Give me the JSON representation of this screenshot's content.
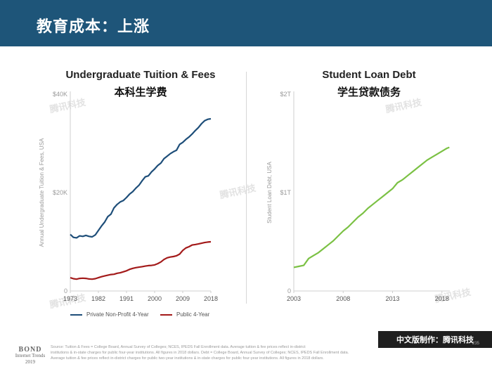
{
  "header": {
    "title": "教育成本：上涨"
  },
  "left_chart": {
    "title_en": "Undergraduate Tuition & Fees",
    "title_zh": "本科生学费"
  },
  "right_chart": {
    "title_en": "Student Loan Debt",
    "title_zh": "学生贷款债务"
  },
  "legend": {
    "private": "Private Non-Profit 4-Year",
    "public": "Public 4-Year"
  },
  "colors": {
    "header": "#1e5579",
    "private": "#1e4e79",
    "public": "#a31a1a",
    "loan": "#7bc144"
  },
  "watermark": "腾讯科技",
  "footer": {
    "bond_line1": "BOND",
    "bond_line2": "Internet Trends",
    "bond_line3": "2019",
    "source_line1": "Source: Tuition & Fees = College Board, Annual Survey of Colleges; NCES, IPEDS Fall Enrollment data. Average tuition & fee prices reflect in-district",
    "source_line2": "institutions & in-state charges for public four-year institutions. All figures in 2018 dollars.  Debt = College Board, Annual Survey of Colleges; NCES, IPEDS Fall Enrollment data.",
    "source_line3": "Average tuition & fee prices reflect in-district charges for public two-year institutions & in-state charges for public four-year institutions. All figures in 2018 dollars.",
    "page": "235",
    "brand": "中文版制作：腾讯科技"
  },
  "chart_data": [
    {
      "type": "line",
      "title": "Undergraduate Tuition & Fees",
      "subtitle": "本科生学费",
      "xlabel": "",
      "ylabel": "Annual Undergraduate Tuition & Fees, USA",
      "xlim": [
        1973,
        2018
      ],
      "ylim": [
        0,
        40000
      ],
      "x_ticks": [
        "1973",
        "1982",
        "1991",
        "2000",
        "2009",
        "2018"
      ],
      "y_ticks": [
        "0",
        "$20K",
        "$40K"
      ],
      "grid": false,
      "legend_position": "bottom",
      "x": [
        1973,
        1974,
        1975,
        1976,
        1977,
        1978,
        1979,
        1980,
        1981,
        1982,
        1983,
        1984,
        1985,
        1986,
        1987,
        1988,
        1989,
        1990,
        1991,
        1992,
        1993,
        1994,
        1995,
        1996,
        1997,
        1998,
        1999,
        2000,
        2001,
        2002,
        2003,
        2004,
        2005,
        2006,
        2007,
        2008,
        2009,
        2010,
        2011,
        2012,
        2013,
        2014,
        2015,
        2016,
        2017,
        2018
      ],
      "series": [
        {
          "name": "Private Non-Profit 4-Year",
          "color": "#1e4e79",
          "values": [
            11500,
            10900,
            10800,
            11200,
            11100,
            11300,
            11100,
            11000,
            11400,
            12300,
            13200,
            14000,
            15100,
            15600,
            16900,
            17600,
            18100,
            18400,
            19000,
            19700,
            20200,
            20900,
            21500,
            22400,
            23200,
            23400,
            24200,
            24800,
            25500,
            26000,
            26900,
            27400,
            27900,
            28300,
            28600,
            29800,
            30200,
            30800,
            31300,
            31900,
            32600,
            33200,
            34000,
            34600,
            34900,
            35000
          ]
        },
        {
          "name": "Public 4-Year",
          "color": "#a31a1a",
          "values": [
            2700,
            2500,
            2400,
            2550,
            2600,
            2550,
            2450,
            2400,
            2500,
            2700,
            2900,
            3050,
            3200,
            3350,
            3400,
            3600,
            3700,
            3900,
            4100,
            4400,
            4600,
            4750,
            4850,
            4950,
            5050,
            5150,
            5200,
            5300,
            5550,
            5900,
            6400,
            6750,
            6900,
            7000,
            7150,
            7500,
            8250,
            8750,
            9000,
            9350,
            9450,
            9550,
            9700,
            9850,
            9950,
            10000
          ]
        }
      ]
    },
    {
      "type": "line",
      "title": "Student Loan Debt",
      "subtitle": "学生贷款债务",
      "xlabel": "",
      "ylabel": "Student Loan Debt, USA",
      "xlim": [
        2003,
        2018.8
      ],
      "ylim": [
        0,
        2
      ],
      "x_ticks": [
        "2003",
        "2008",
        "2013",
        "2018"
      ],
      "y_ticks": [
        "0",
        "$1T",
        "$2T"
      ],
      "grid": false,
      "series": [
        {
          "name": "",
          "color": "#7bc144",
          "x": [
            2003.0,
            2003.5,
            2004.0,
            2004.5,
            2005.0,
            2005.5,
            2006.0,
            2006.5,
            2007.0,
            2007.5,
            2008.0,
            2008.5,
            2009.0,
            2009.5,
            2010.0,
            2010.5,
            2011.0,
            2011.5,
            2012.0,
            2012.5,
            2013.0,
            2013.5,
            2014.0,
            2014.5,
            2015.0,
            2015.5,
            2016.0,
            2016.5,
            2017.0,
            2017.5,
            2018.0,
            2018.5,
            2018.75
          ],
          "values": [
            0.24,
            0.25,
            0.26,
            0.33,
            0.36,
            0.39,
            0.43,
            0.47,
            0.51,
            0.56,
            0.61,
            0.65,
            0.7,
            0.75,
            0.79,
            0.84,
            0.88,
            0.92,
            0.96,
            1.0,
            1.04,
            1.1,
            1.13,
            1.17,
            1.21,
            1.25,
            1.29,
            1.33,
            1.36,
            1.39,
            1.42,
            1.45,
            1.46
          ]
        }
      ]
    }
  ]
}
